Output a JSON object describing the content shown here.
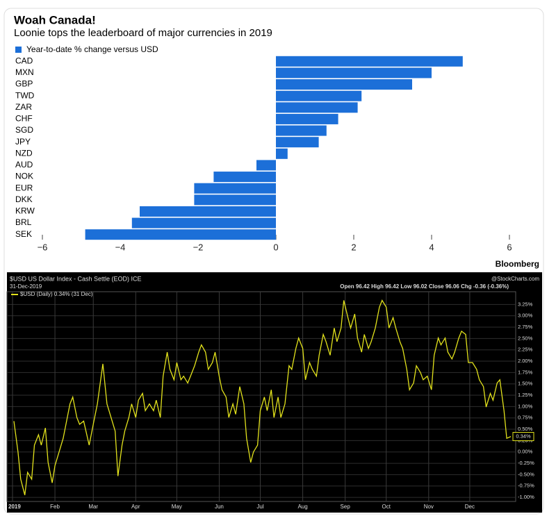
{
  "chart_data": [
    {
      "type": "hbar",
      "title": "Woah Canada!",
      "subtitle": "Loonie tops the leaderboard of major currencies in 2019",
      "source": "Bloomberg",
      "categories": [
        "CAD",
        "MXN",
        "GBP",
        "TWD",
        "ZAR",
        "CHF",
        "SGD",
        "JPY",
        "NZD",
        "AUD",
        "NOK",
        "EUR",
        "DKK",
        "KRW",
        "BRL",
        "SEK"
      ],
      "series": [
        {
          "name": "Year-to-date % change versus USD",
          "color": "#1c6fd8",
          "values": [
            4.8,
            4.0,
            3.5,
            2.2,
            2.1,
            1.6,
            1.3,
            1.1,
            0.3,
            -0.5,
            -1.6,
            -2.1,
            -2.1,
            -3.5,
            -3.7,
            -4.9
          ]
        }
      ],
      "xlim": [
        -6,
        6
      ],
      "xticks": [
        {
          "value": -6,
          "label": "−6"
        },
        {
          "value": -4,
          "label": "−4"
        },
        {
          "value": -2,
          "label": "−2"
        },
        0,
        2,
        4,
        6
      ]
    },
    {
      "type": "line",
      "title": "$USD US Dollar Index - Cash Settle (EOD) ICE",
      "subtitle": "31-Dec-2019",
      "quote": "Open 96.42  High 96.42  Low 96.02  Close 96.06  Chg -0.36 (-0.36%)",
      "source": "@StockCharts.com",
      "x": [
        2,
        5,
        7,
        10,
        12,
        15,
        17,
        20,
        22,
        25,
        27,
        30,
        32,
        38,
        43,
        45,
        48,
        50,
        53,
        57,
        60,
        63,
        67,
        70,
        73,
        76,
        78,
        81,
        83,
        86,
        88,
        91,
        93,
        96,
        98,
        101,
        104,
        106,
        109,
        111,
        114,
        116,
        119,
        121,
        124,
        126,
        129,
        131,
        134,
        137,
        139,
        142,
        144,
        147,
        149,
        152,
        154,
        157,
        159,
        162,
        164,
        167,
        170,
        172,
        175,
        177,
        180,
        182,
        185,
        187,
        190,
        192,
        195,
        197,
        200,
        203,
        205,
        208,
        210,
        213,
        215,
        218,
        220,
        223,
        225,
        228,
        230,
        233,
        236,
        238,
        241,
        243,
        246,
        248,
        251,
        253,
        256,
        258,
        261,
        263,
        266,
        269,
        271,
        274,
        276,
        279,
        281,
        284,
        286,
        289,
        291,
        294,
        296,
        299,
        301,
        304,
        307,
        309,
        312,
        314,
        317,
        319,
        322,
        324,
        327,
        329,
        332,
        334,
        337,
        340,
        342,
        345,
        347,
        350,
        352,
        355,
        357,
        360,
        362,
        365
      ],
      "series": [
        {
          "name": "$USD (Daily) 0.34% (31 Dec)",
          "color": "#e3e31c",
          "values": [
            0.68,
            0,
            -0.6,
            -0.95,
            -0.45,
            -0.6,
            0.15,
            0.38,
            0.15,
            0.53,
            -0.23,
            -0.68,
            -0.3,
            0.3,
            1.06,
            1.21,
            0.76,
            0.61,
            0.68,
            0.15,
            0.61,
            1.06,
            1.94,
            1.06,
            0.76,
            0.46,
            -0.53,
            0.15,
            0.46,
            0.76,
            1.06,
            0.76,
            1.14,
            1.29,
            0.91,
            1.06,
            0.91,
            1.14,
            0.76,
            1.67,
            2.2,
            1.82,
            1.59,
            1.97,
            1.59,
            1.67,
            1.52,
            1.67,
            1.9,
            2.2,
            2.36,
            2.2,
            1.82,
            1.97,
            2.2,
            1.67,
            1.37,
            1.21,
            0.76,
            1.06,
            0.83,
            1.44,
            1.06,
            0.3,
            -0.23,
            0,
            0.15,
            0.91,
            1.21,
            0.91,
            1.37,
            0.76,
            1.21,
            0.76,
            1.06,
            1.9,
            1.82,
            2.28,
            2.51,
            2.28,
            1.59,
            1.97,
            1.82,
            1.67,
            2.13,
            2.59,
            2.43,
            2.13,
            2.73,
            2.43,
            2.73,
            3.34,
            2.96,
            2.73,
            3.04,
            2.51,
            2.2,
            2.59,
            2.28,
            2.43,
            2.73,
            3.19,
            3.34,
            3.19,
            2.73,
            2.96,
            2.73,
            2.43,
            2.28,
            1.82,
            1.37,
            1.52,
            1.9,
            1.75,
            1.59,
            1.67,
            1.37,
            2.13,
            2.51,
            2.36,
            2.51,
            2.2,
            2.05,
            2.2,
            2.51,
            2.66,
            2.59,
            1.97,
            1.97,
            1.82,
            1.59,
            1.44,
            0.99,
            1.29,
            1.14,
            1.52,
            1.59,
            0.91,
            0.3,
            0.34
          ]
        }
      ],
      "annotations": [
        {
          "text": "0.34%",
          "y": 0.34
        }
      ],
      "xlim": [
        1,
        365
      ],
      "xticks": [
        {
          "value": 1,
          "label": "2019"
        },
        {
          "value": 32,
          "label": "Feb"
        },
        {
          "value": 60,
          "label": "Mar"
        },
        {
          "value": 91,
          "label": "Apr"
        },
        {
          "value": 121,
          "label": "May"
        },
        {
          "value": 152,
          "label": "Jun"
        },
        {
          "value": 182,
          "label": "Jul"
        },
        {
          "value": 213,
          "label": "Aug"
        },
        {
          "value": 244,
          "label": "Sep"
        },
        {
          "value": 274,
          "label": "Oct"
        },
        {
          "value": 305,
          "label": "Nov"
        },
        {
          "value": 335,
          "label": "Dec"
        }
      ],
      "ylim": [
        -1.06,
        3.5
      ],
      "yticks": [
        {
          "value": -1,
          "label": "-1.00%"
        },
        {
          "value": -0.75,
          "label": "-0.75%"
        },
        {
          "value": -0.5,
          "label": "-0.50%"
        },
        {
          "value": -0.25,
          "label": "-0.25%"
        },
        {
          "value": 0,
          "label": "0.00%"
        },
        {
          "value": 0.25,
          "label": "0.25%"
        },
        {
          "value": 0.5,
          "label": "0.50%"
        },
        {
          "value": 0.75,
          "label": "0.75%"
        },
        {
          "value": 1,
          "label": "1.00%"
        },
        {
          "value": 1.25,
          "label": "1.25%"
        },
        {
          "value": 1.5,
          "label": "1.50%"
        },
        {
          "value": 1.75,
          "label": "1.75%"
        },
        {
          "value": 2,
          "label": "2.00%"
        },
        {
          "value": 2.25,
          "label": "2.25%"
        },
        {
          "value": 2.5,
          "label": "2.50%"
        },
        {
          "value": 2.75,
          "label": "2.75%"
        },
        {
          "value": 3,
          "label": "3.00%"
        },
        {
          "value": 3.25,
          "label": "3.25%"
        }
      ],
      "grid": true
    }
  ]
}
